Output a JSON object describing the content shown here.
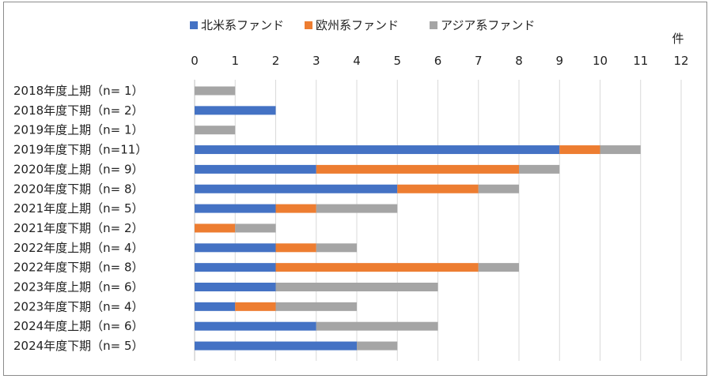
{
  "chart_data": {
    "type": "bar",
    "orientation": "horizontal",
    "stacked": true,
    "unit_label": "件",
    "xlim": [
      0,
      12
    ],
    "x_ticks": [
      0,
      1,
      2,
      3,
      4,
      5,
      6,
      7,
      8,
      9,
      10,
      11,
      12
    ],
    "grid": true,
    "legend_position": "top",
    "categories": [
      "2018年度上期（n=  1）",
      "2018年度下期（n=  2）",
      "2019年度上期（n=  1）",
      "2019年度下期（n=11）",
      "2020年度上期（n=  9）",
      "2020年度下期（n=  8）",
      "2021年度上期（n=  5）",
      "2021年度下期（n=  2）",
      "2022年度上期（n=  4）",
      "2022年度下期（n=  8）",
      "2023年度上期（n=  6）",
      "2023年度下期（n=  4）",
      "2024年度上期（n=  6）",
      "2024年度下期（n=  5）"
    ],
    "series": [
      {
        "name": "北米系ファンド",
        "color": "#4472C4",
        "values": [
          0,
          2,
          0,
          9,
          3,
          5,
          2,
          0,
          2,
          2,
          2,
          1,
          3,
          4
        ]
      },
      {
        "name": "欧州系ファンド",
        "color": "#ED7D31",
        "values": [
          0,
          0,
          0,
          1,
          5,
          2,
          1,
          1,
          1,
          5,
          0,
          1,
          0,
          0
        ]
      },
      {
        "name": "アジア系ファンド",
        "color": "#A5A5A5",
        "values": [
          1,
          0,
          1,
          1,
          1,
          1,
          2,
          1,
          1,
          1,
          4,
          2,
          3,
          1
        ]
      }
    ]
  }
}
